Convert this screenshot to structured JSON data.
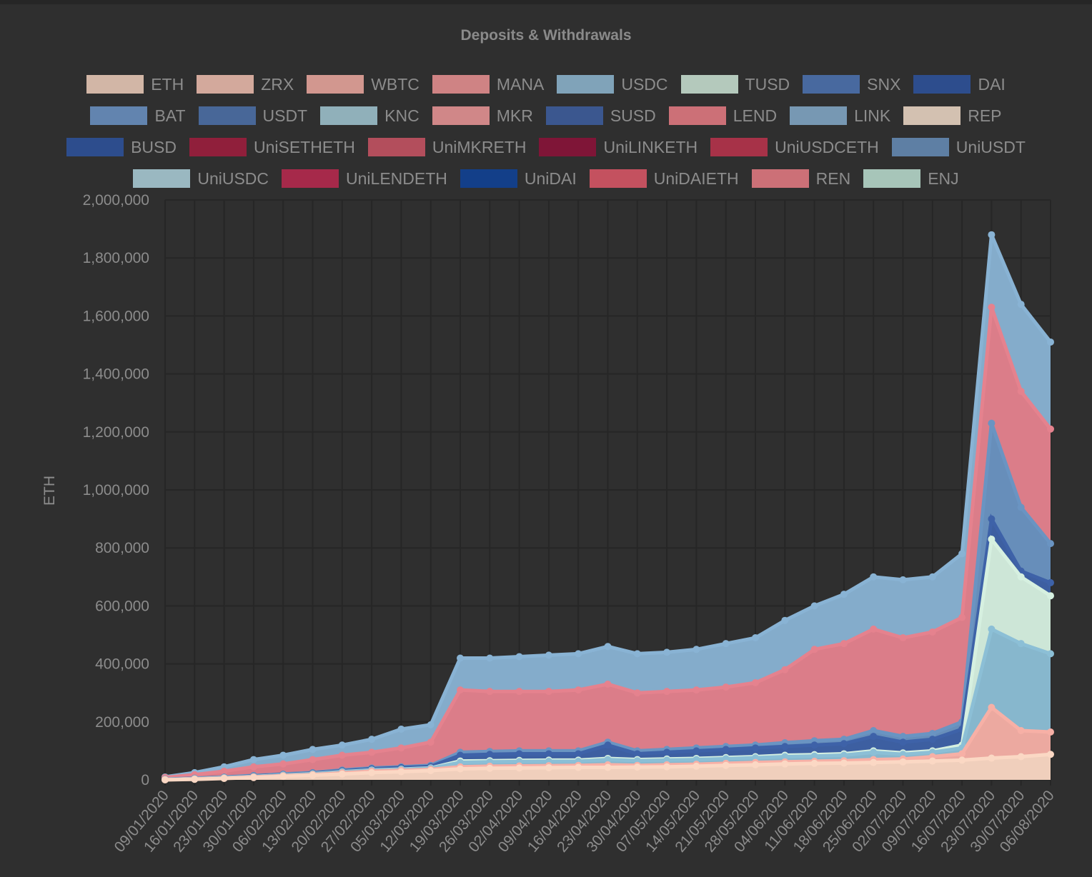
{
  "chart_data": {
    "type": "area",
    "title": "Deposits & Withdrawals",
    "xlabel": "",
    "ylabel": "ETH",
    "ylim": [
      0,
      2000000
    ],
    "yticks": [
      0,
      200000,
      400000,
      600000,
      800000,
      1000000,
      1200000,
      1400000,
      1600000,
      1800000,
      2000000
    ],
    "ytick_labels": [
      "0",
      "200,000",
      "400,000",
      "600,000",
      "800,000",
      "1,000,000",
      "1,200,000",
      "1,400,000",
      "1,600,000",
      "1,800,000",
      "2,000,000"
    ],
    "x_tick_labels": [
      "09/01/2020",
      "16/01/2020",
      "23/01/2020",
      "30/01/2020",
      "06/02/2020",
      "13/02/2020",
      "20/02/2020",
      "27/02/2020",
      "05/03/2020",
      "12/03/2020",
      "19/03/2020",
      "26/03/2020",
      "02/04/2020",
      "09/04/2020",
      "16/04/2020",
      "23/04/2020",
      "30/04/2020",
      "07/05/2020",
      "14/05/2020",
      "21/05/2020",
      "28/05/2020",
      "04/06/2020",
      "11/06/2020",
      "18/06/2020",
      "25/06/2020",
      "02/07/2020",
      "09/07/2020",
      "16/07/2020",
      "23/07/2020",
      "30/07/2020",
      "06/08/2020"
    ],
    "grid": true,
    "stacked": true,
    "legend": [
      {
        "name": "ETH",
        "color": "#fbd8c4"
      },
      {
        "name": "ZRX",
        "color": "#fcc8b8"
      },
      {
        "name": "WBTC",
        "color": "#fbb2a8"
      },
      {
        "name": "MANA",
        "color": "#f7999a"
      },
      {
        "name": "USDC",
        "color": "#95c0dc"
      },
      {
        "name": "TUSD",
        "color": "#d6f0e0"
      },
      {
        "name": "SNX",
        "color": "#4f78bb"
      },
      {
        "name": "DAI",
        "color": "#2d55a5"
      },
      {
        "name": "BAT",
        "color": "#6f9ad0"
      },
      {
        "name": "USDT",
        "color": "#4f76b3"
      },
      {
        "name": "KNC",
        "color": "#a9d1dd"
      },
      {
        "name": "MKR",
        "color": "#f99d9f"
      },
      {
        "name": "SUSD",
        "color": "#3e62a8"
      },
      {
        "name": "LEND",
        "color": "#f4818a"
      },
      {
        "name": "LINK",
        "color": "#89b3d4"
      },
      {
        "name": "REP",
        "color": "#fde6d2"
      },
      {
        "name": "BUSD",
        "color": "#2d55a5"
      },
      {
        "name": "UniSETHETH",
        "color": "#a91c3f"
      },
      {
        "name": "UniMKRETH",
        "color": "#d45668"
      },
      {
        "name": "UniLINKETH",
        "color": "#930f3a"
      },
      {
        "name": "UniUSDCETH",
        "color": "#c5334f"
      },
      {
        "name": "UniUSDT",
        "color": "#6a94c2"
      },
      {
        "name": "UniUSDC",
        "color": "#b5dbe6"
      },
      {
        "name": "UniLENDETH",
        "color": "#c42851"
      },
      {
        "name": "UniDAI",
        "color": "#0d43a0"
      },
      {
        "name": "UniDAIETH",
        "color": "#ea5a6c"
      },
      {
        "name": "REN",
        "color": "#f4818a"
      },
      {
        "name": "ENJ",
        "color": "#c6ebdc"
      }
    ],
    "stack_layers_visible": [
      {
        "name": "ETH+ZRX",
        "color": "#fbd8c4",
        "x": [
          "09/01/2020",
          "16/01/2020",
          "23/01/2020",
          "30/01/2020",
          "06/02/2020",
          "13/02/2020",
          "20/02/2020",
          "27/02/2020",
          "05/03/2020",
          "12/03/2020",
          "19/03/2020",
          "26/03/2020",
          "02/04/2020",
          "09/04/2020",
          "16/04/2020",
          "23/04/2020",
          "30/04/2020",
          "07/05/2020",
          "14/05/2020",
          "21/05/2020",
          "28/05/2020",
          "04/06/2020",
          "11/06/2020",
          "18/06/2020",
          "25/06/2020",
          "02/07/2020",
          "09/07/2020",
          "16/07/2020",
          "23/07/2020",
          "30/07/2020",
          "06/08/2020"
        ],
        "values": [
          0,
          2000,
          5000,
          8000,
          12000,
          16000,
          20000,
          25000,
          28000,
          32000,
          38000,
          40000,
          41000,
          42000,
          43000,
          43000,
          44000,
          45000,
          47000,
          50000,
          52000,
          55000,
          57000,
          58000,
          60000,
          62000,
          65000,
          68000,
          75000,
          80000,
          88000
        ]
      },
      {
        "name": "MANA",
        "color": "#f7b0a6",
        "values": [
          1000,
          3000,
          6000,
          10000,
          14000,
          18000,
          24000,
          30000,
          33000,
          36000,
          45000,
          47000,
          48000,
          49000,
          50000,
          52000,
          50000,
          52000,
          54000,
          57000,
          60000,
          62000,
          64000,
          66000,
          70000,
          72000,
          80000,
          90000,
          250000,
          170000,
          165000
        ]
      },
      {
        "name": "USDC+KNC",
        "color": "#8cbfd6",
        "values": [
          1500,
          4000,
          7000,
          11000,
          16000,
          20000,
          27000,
          33000,
          36000,
          40000,
          60000,
          62000,
          63000,
          64000,
          64000,
          70000,
          66000,
          68000,
          70000,
          73000,
          76000,
          80000,
          82000,
          85000,
          95000,
          88000,
          95000,
          110000,
          520000,
          470000,
          435000
        ]
      },
      {
        "name": "TUSD",
        "color": "#d6f0e0",
        "values": [
          1600,
          4200,
          7300,
          11500,
          16500,
          21000,
          28000,
          34000,
          37000,
          41000,
          65000,
          66000,
          67000,
          68000,
          68000,
          74000,
          70000,
          72000,
          74000,
          77000,
          80000,
          85000,
          87000,
          90000,
          100000,
          93000,
          100000,
          120000,
          830000,
          700000,
          635000
        ]
      },
      {
        "name": "DAI+SNX+SUSD",
        "color": "#3e62a8",
        "values": [
          2000,
          5000,
          8000,
          13000,
          18000,
          23000,
          31000,
          38000,
          42000,
          46000,
          85000,
          88000,
          90000,
          90000,
          90000,
          120000,
          90000,
          95000,
          100000,
          105000,
          110000,
          115000,
          120000,
          125000,
          150000,
          130000,
          140000,
          175000,
          900000,
          720000,
          680000
        ]
      },
      {
        "name": "BAT+USDT",
        "color": "#6a94c2",
        "values": [
          2500,
          6000,
          9500,
          15000,
          20000,
          25000,
          34000,
          41000,
          45000,
          50000,
          95000,
          98000,
          100000,
          100000,
          100000,
          130000,
          100000,
          105000,
          110000,
          115000,
          120000,
          128000,
          135000,
          140000,
          170000,
          150000,
          160000,
          200000,
          1230000,
          940000,
          815000
        ]
      },
      {
        "name": "MKR+LEND+REN",
        "color": "#e5828e",
        "values": [
          8000,
          18000,
          30000,
          45000,
          55000,
          70000,
          85000,
          95000,
          110000,
          130000,
          310000,
          305000,
          305000,
          305000,
          310000,
          330000,
          300000,
          305000,
          310000,
          320000,
          335000,
          380000,
          450000,
          470000,
          520000,
          490000,
          510000,
          560000,
          1630000,
          1340000,
          1210000
        ]
      },
      {
        "name": "LINK+UniUSDT",
        "color": "#89b3d4",
        "values": [
          10000,
          25000,
          45000,
          70000,
          85000,
          105000,
          120000,
          140000,
          175000,
          190000,
          420000,
          420000,
          425000,
          430000,
          435000,
          460000,
          435000,
          440000,
          450000,
          470000,
          490000,
          550000,
          600000,
          640000,
          700000,
          690000,
          700000,
          780000,
          1880000,
          1640000,
          1510000
        ]
      }
    ]
  }
}
